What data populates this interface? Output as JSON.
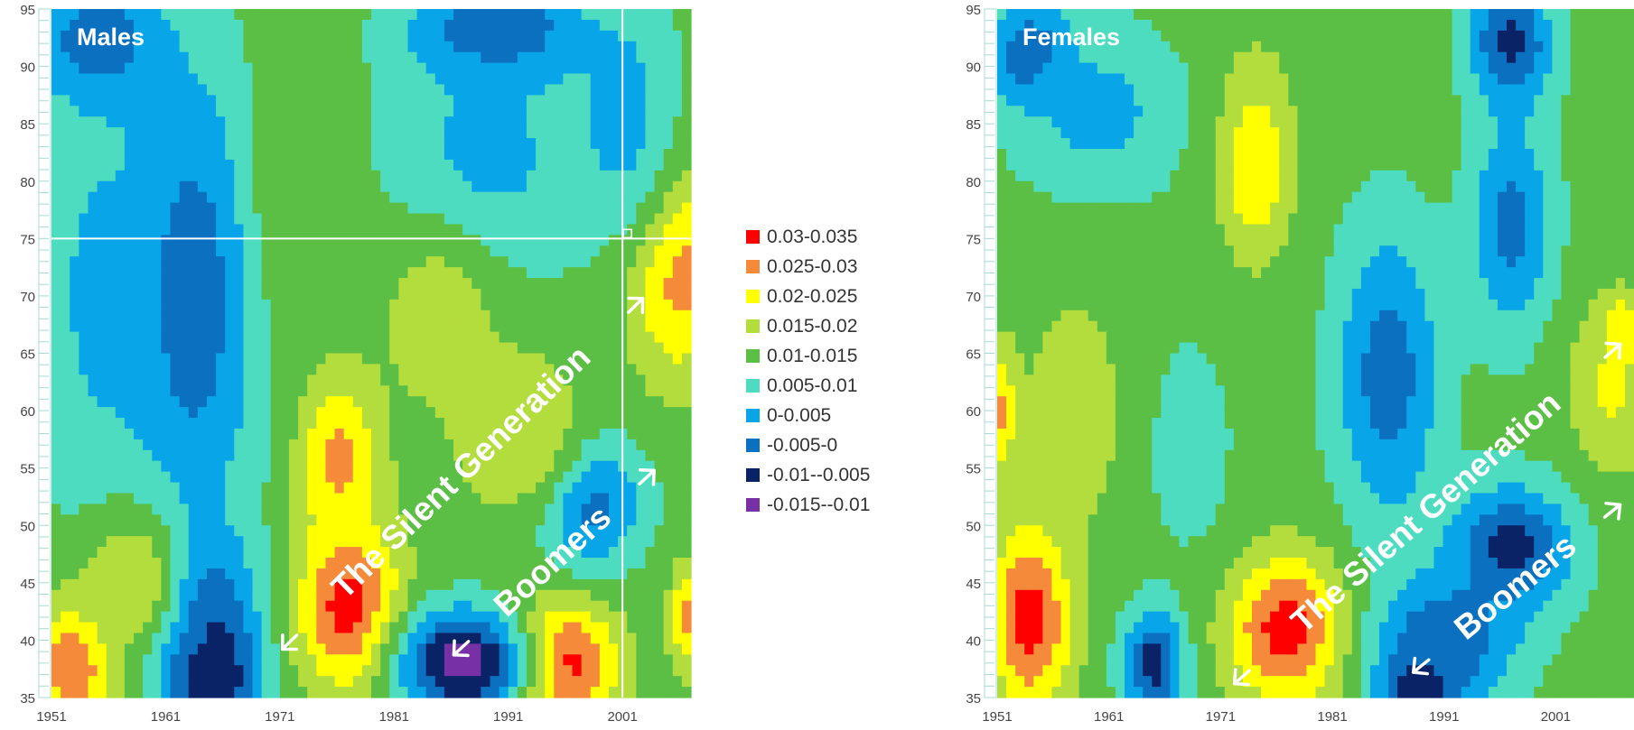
{
  "chart_data": [
    {
      "type": "heatmap",
      "panel_label": "Males",
      "x_ticks": [
        "1951",
        "1961",
        "1971",
        "1981",
        "1991",
        "2001"
      ],
      "y_ticks": [
        "35",
        "40",
        "45",
        "50",
        "55",
        "60",
        "65",
        "70",
        "75",
        "80",
        "85",
        "90",
        "95"
      ],
      "xlim": [
        1951,
        2007
      ],
      "ylim": [
        35,
        95
      ],
      "crosshair": {
        "x": 2001,
        "y": 75
      },
      "annotations": [
        {
          "text": "The Silent Generation",
          "x_start": 1971,
          "y_start": 39,
          "x_end": 2003,
          "y_end": 70
        },
        {
          "text": "Boomers",
          "x_start": 1986,
          "y_start": 38.5,
          "x_end": 2004,
          "y_end": 55
        }
      ],
      "blobs": [
        {
          "x": 1953,
          "y": 38,
          "v": 0.032,
          "rx": 4,
          "ry": 6
        },
        {
          "x": 1977,
          "y": 43,
          "v": 0.033,
          "rx": 5,
          "ry": 8
        },
        {
          "x": 1996,
          "y": 38,
          "v": 0.033,
          "rx": 5,
          "ry": 6
        },
        {
          "x": 1976,
          "y": 56,
          "v": 0.027,
          "rx": 4,
          "ry": 8
        },
        {
          "x": 2006,
          "y": 72,
          "v": 0.028,
          "rx": 5,
          "ry": 10
        },
        {
          "x": 1987,
          "y": 38,
          "v": -0.013,
          "rx": 6,
          "ry": 5
        },
        {
          "x": 1965,
          "y": 37,
          "v": -0.013,
          "rx": 4,
          "ry": 5
        },
        {
          "x": 1964,
          "y": 42,
          "v": -0.008,
          "rx": 5,
          "ry": 8
        },
        {
          "x": 1963,
          "y": 70,
          "v": -0.004,
          "rx": 7,
          "ry": 22
        },
        {
          "x": 1955,
          "y": 92,
          "v": -0.006,
          "rx": 6,
          "ry": 6
        },
        {
          "x": 1990,
          "y": 93,
          "v": -0.008,
          "rx": 8,
          "ry": 5
        },
        {
          "x": 1955,
          "y": 70,
          "v": 0.004,
          "rx": 6,
          "ry": 22
        },
        {
          "x": 1989,
          "y": 82,
          "v": 0.003,
          "rx": 9,
          "ry": 12
        },
        {
          "x": 2001,
          "y": 86,
          "v": 0.003,
          "rx": 5,
          "ry": 12
        },
        {
          "x": 1998,
          "y": 52,
          "v": -0.004,
          "rx": 5,
          "ry": 6
        },
        {
          "x": 1985,
          "y": 68,
          "v": 0.018,
          "rx": 6,
          "ry": 9
        },
        {
          "x": 1992,
          "y": 58,
          "v": 0.02,
          "rx": 6,
          "ry": 8
        },
        {
          "x": 1972,
          "y": 80,
          "v": 0.014,
          "rx": 4,
          "ry": 16
        },
        {
          "x": 1958,
          "y": 45,
          "v": 0.02,
          "rx": 5,
          "ry": 7
        },
        {
          "x": 2007,
          "y": 42,
          "v": 0.027,
          "rx": 2,
          "ry": 5
        }
      ]
    },
    {
      "type": "heatmap",
      "panel_label": "Females",
      "x_ticks": [
        "1951",
        "1961",
        "1971",
        "1981",
        "1991",
        "2001"
      ],
      "y_ticks": [
        "35",
        "40",
        "45",
        "50",
        "55",
        "60",
        "65",
        "70",
        "75",
        "80",
        "85",
        "90",
        "95"
      ],
      "xlim": [
        1951,
        2008
      ],
      "ylim": [
        35,
        95
      ],
      "annotations": [
        {
          "text": "The Silent Generation",
          "x_start": 1972,
          "y_start": 36,
          "x_end": 2007,
          "y_end": 66
        },
        {
          "text": "Boomers",
          "x_start": 1988,
          "y_start": 37,
          "x_end": 2007,
          "y_end": 52
        }
      ],
      "blobs": [
        {
          "x": 1954,
          "y": 42,
          "v": 0.033,
          "rx": 4,
          "ry": 9
        },
        {
          "x": 1951,
          "y": 60,
          "v": 0.028,
          "rx": 2,
          "ry": 6
        },
        {
          "x": 1977,
          "y": 41,
          "v": 0.033,
          "rx": 6,
          "ry": 7
        },
        {
          "x": 1974,
          "y": 81,
          "v": 0.028,
          "rx": 2,
          "ry": 5
        },
        {
          "x": 1974,
          "y": 82,
          "v": 0.022,
          "rx": 4,
          "ry": 10
        },
        {
          "x": 1989,
          "y": 36,
          "v": -0.012,
          "rx": 4,
          "ry": 3
        },
        {
          "x": 1965,
          "y": 38,
          "v": -0.008,
          "rx": 3,
          "ry": 5
        },
        {
          "x": 1997,
          "y": 48,
          "v": -0.007,
          "rx": 6,
          "ry": 6
        },
        {
          "x": 1991,
          "y": 40,
          "v": -0.005,
          "rx": 7,
          "ry": 6
        },
        {
          "x": 1954,
          "y": 91,
          "v": -0.006,
          "rx": 4,
          "ry": 5
        },
        {
          "x": 1997,
          "y": 92,
          "v": -0.007,
          "rx": 4,
          "ry": 6
        },
        {
          "x": 1986,
          "y": 63,
          "v": -0.003,
          "rx": 5,
          "ry": 14
        },
        {
          "x": 1997,
          "y": 76,
          "v": -0.002,
          "rx": 4,
          "ry": 10
        },
        {
          "x": 1960,
          "y": 86,
          "v": 0.003,
          "rx": 8,
          "ry": 8
        },
        {
          "x": 1968,
          "y": 57,
          "v": 0.008,
          "rx": 5,
          "ry": 12
        },
        {
          "x": 2007,
          "y": 67,
          "v": 0.027,
          "rx": 2,
          "ry": 3
        },
        {
          "x": 2006,
          "y": 62,
          "v": 0.021,
          "rx": 4,
          "ry": 8
        },
        {
          "x": 1958,
          "y": 60,
          "v": 0.018,
          "rx": 5,
          "ry": 12
        }
      ]
    }
  ],
  "legend": [
    {
      "label": "0.03-0.035",
      "color": "#ff0000",
      "min": 0.03,
      "max": 0.035
    },
    {
      "label": "0.025-0.03",
      "color": "#f58b3a",
      "min": 0.025,
      "max": 0.03
    },
    {
      "label": "0.02-0.025",
      "color": "#ffff00",
      "min": 0.02,
      "max": 0.025
    },
    {
      "label": "0.015-0.02",
      "color": "#b3dd3c",
      "min": 0.015,
      "max": 0.02
    },
    {
      "label": "0.01-0.015",
      "color": "#5cbf45",
      "min": 0.01,
      "max": 0.015
    },
    {
      "label": "0.005-0.01",
      "color": "#4ddcc0",
      "min": 0.005,
      "max": 0.01
    },
    {
      "label": "0-0.005",
      "color": "#08a6e8",
      "min": 0,
      "max": 0.005
    },
    {
      "label": "-0.005-0",
      "color": "#0b70c0",
      "min": -0.005,
      "max": 0
    },
    {
      "label": "-0.01--0.005",
      "color": "#0a2366",
      "min": -0.01,
      "max": -0.005
    },
    {
      "label": "-0.015--0.01",
      "color": "#7830a6",
      "min": -0.015,
      "max": -0.01
    }
  ],
  "background_value": 0.012,
  "axis_color": "#a9d8d5",
  "annotation_color": "#ffffff"
}
